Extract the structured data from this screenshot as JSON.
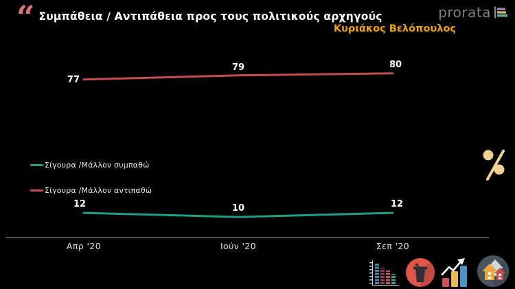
{
  "header": {
    "title": "Συμπάθεια / Αντιπάθεια προς τους πολιτικούς αρχηγούς",
    "logo_text": "prorata"
  },
  "person_label": "Κυριάκος Βελόπουλος",
  "legend": {
    "items": [
      {
        "label": "Σίγουρα /Μάλλον συμπαθώ",
        "color": "#1f9e88"
      },
      {
        "label": "Σίγουρα /Μάλλον αντιπαθώ",
        "color": "#c34e52"
      }
    ]
  },
  "chart_data": {
    "type": "line",
    "categories": [
      "Απρ '20",
      "Ιούν '20",
      "Σεπ '20"
    ],
    "series": [
      {
        "name": "Σίγουρα /Μάλλον αντιπαθώ",
        "color": "#c34e52",
        "values": [
          77,
          79,
          80
        ]
      },
      {
        "name": "Σίγουρα /Μάλλον συμπαθώ",
        "color": "#1f9e88",
        "values": [
          12,
          10,
          12
        ]
      }
    ],
    "title": "Συμπάθεια / Αντιπάθεια προς τους πολιτικούς αρχηγούς",
    "subtitle": "Κυριάκος Βελόπουλος",
    "xlabel": "",
    "ylabel": "",
    "ylim": [
      0,
      100
    ],
    "grid": false,
    "data_labels": true,
    "x_axis_line": true,
    "legend_position": "middle-left"
  },
  "colors": {
    "background": "#000000",
    "title_text": "#ffffff",
    "person_label": "#f0a500",
    "quote_mark": "#dd737a",
    "logo_text": "#7f7f7f",
    "percent_sign": "#f1d28e",
    "axis_line": "#aaaaaa"
  },
  "icons": {
    "quote": "opening-double-quote",
    "percent": "percent-sign",
    "logo_mark": "bar-chart-logo-mark",
    "footer": [
      "equalizer-bar-chart",
      "speaker-podium",
      "rising-bar-chart-arrow",
      "houses-with-people"
    ]
  }
}
